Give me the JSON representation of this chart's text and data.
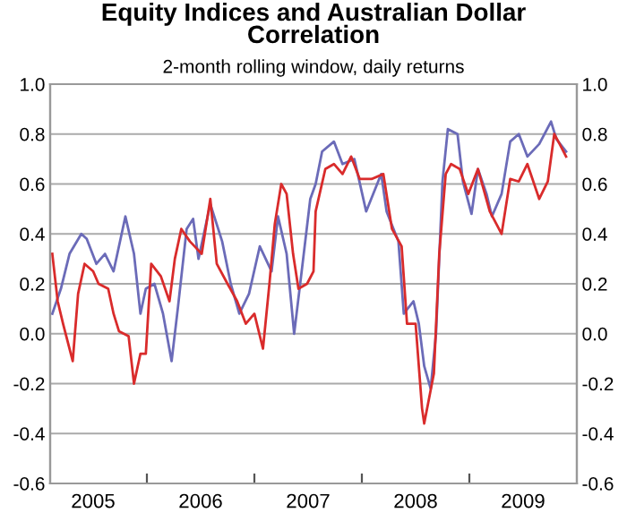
{
  "chart_data": {
    "type": "line",
    "title": "Equity Indices and Australian Dollar\nCorrelation",
    "subtitle": "2-month rolling window, daily returns",
    "xlim": [
      2005.1,
      2010.0
    ],
    "xticks": [
      {
        "value": 2006,
        "label": null
      },
      {
        "value": 2007,
        "label": null
      },
      {
        "value": 2008,
        "label": null
      },
      {
        "value": 2009,
        "label": null
      },
      {
        "value": 2005.5,
        "label": "2005"
      },
      {
        "value": 2006.5,
        "label": "2006"
      },
      {
        "value": 2007.5,
        "label": "2007"
      },
      {
        "value": 2008.5,
        "label": "2008"
      },
      {
        "value": 2009.5,
        "label": "2009"
      }
    ],
    "ylim": [
      -0.6,
      1.0
    ],
    "yticks": [
      {
        "value": -0.6,
        "label": "-0.6"
      },
      {
        "value": -0.4,
        "label": "-0.4"
      },
      {
        "value": -0.2,
        "label": "-0.2"
      },
      {
        "value": 0,
        "label": "0.0"
      },
      {
        "value": 0.2,
        "label": "0.2"
      },
      {
        "value": 0.4,
        "label": "0.4"
      },
      {
        "value": 0.6,
        "label": "0.6"
      },
      {
        "value": 0.8,
        "label": "0.8"
      },
      {
        "value": 1.0,
        "label": "1.0"
      }
    ],
    "y2lim": [
      -0.6,
      1.0
    ],
    "y2ticks": [
      {
        "value": -0.6,
        "label": "-0.6"
      },
      {
        "value": -0.4,
        "label": "-0.4"
      },
      {
        "value": -0.2,
        "label": "-0.2"
      },
      {
        "value": 0,
        "label": "0.0"
      },
      {
        "value": 0.2,
        "label": "0.2"
      },
      {
        "value": 0.4,
        "label": "0.4"
      },
      {
        "value": 0.6,
        "label": "0.6"
      },
      {
        "value": 0.8,
        "label": "0.8"
      },
      {
        "value": 1.0,
        "label": "1.0"
      }
    ],
    "grid": "y",
    "legend": false,
    "series": [
      {
        "color": "#6b6bb8",
        "x": [
          2005.12,
          2005.2,
          2005.28,
          2005.39,
          2005.44,
          2005.53,
          2005.61,
          2005.69,
          2005.8,
          2005.88,
          2005.94,
          2005.99,
          2006.07,
          2006.15,
          2006.23,
          2006.29,
          2006.37,
          2006.43,
          2006.48,
          2006.59,
          2006.7,
          2006.78,
          2006.86,
          2006.95,
          2007.05,
          2007.16,
          2007.22,
          2007.3,
          2007.37,
          2007.44,
          2007.52,
          2007.57,
          2007.63,
          2007.74,
          2007.82,
          2007.93,
          2008.04,
          2008.18,
          2008.23,
          2008.34,
          2008.39,
          2008.48,
          2008.53,
          2008.58,
          2008.64,
          2008.69,
          2008.75,
          2008.8,
          2008.89,
          2008.94,
          2009.02,
          2009.08,
          2009.16,
          2009.21,
          2009.3,
          2009.38,
          2009.46,
          2009.54,
          2009.65,
          2009.76,
          2009.81,
          2009.9
        ],
        "values": [
          0.08,
          0.18,
          0.32,
          0.4,
          0.38,
          0.28,
          0.32,
          0.25,
          0.47,
          0.32,
          0.08,
          0.18,
          0.2,
          0.08,
          -0.11,
          0.11,
          0.42,
          0.46,
          0.3,
          0.52,
          0.37,
          0.2,
          0.08,
          0.16,
          0.35,
          0.25,
          0.47,
          0.32,
          0.0,
          0.25,
          0.54,
          0.6,
          0.73,
          0.77,
          0.68,
          0.7,
          0.49,
          0.64,
          0.49,
          0.37,
          0.08,
          0.13,
          0.04,
          -0.13,
          -0.22,
          0.0,
          0.61,
          0.82,
          0.8,
          0.61,
          0.48,
          0.66,
          0.56,
          0.47,
          0.56,
          0.77,
          0.8,
          0.71,
          0.76,
          0.85,
          0.78,
          0.73
        ]
      },
      {
        "color": "#d92b2b",
        "x": [
          2005.12,
          2005.17,
          2005.22,
          2005.31,
          2005.36,
          2005.42,
          2005.5,
          2005.55,
          2005.64,
          2005.69,
          2005.74,
          2005.83,
          2005.88,
          2005.94,
          2005.99,
          2006.04,
          2006.13,
          2006.21,
          2006.26,
          2006.32,
          2006.4,
          2006.51,
          2006.59,
          2006.65,
          2006.75,
          2006.84,
          2006.92,
          2007.0,
          2007.08,
          2007.14,
          2007.19,
          2007.25,
          2007.3,
          2007.36,
          2007.41,
          2007.49,
          2007.55,
          2007.57,
          2007.66,
          2007.74,
          2007.82,
          2007.9,
          2007.98,
          2008.09,
          2008.2,
          2008.28,
          2008.37,
          2008.42,
          2008.5,
          2008.56,
          2008.58,
          2008.67,
          2008.72,
          2008.78,
          2008.83,
          2008.91,
          2008.99,
          2009.08,
          2009.19,
          2009.3,
          2009.38,
          2009.46,
          2009.54,
          2009.65,
          2009.73,
          2009.79,
          2009.84,
          2009.9
        ],
        "values": [
          0.32,
          0.13,
          0.04,
          -0.11,
          0.16,
          0.28,
          0.25,
          0.2,
          0.18,
          0.08,
          0.01,
          -0.01,
          -0.2,
          -0.08,
          -0.08,
          0.28,
          0.23,
          0.13,
          0.3,
          0.42,
          0.37,
          0.32,
          0.54,
          0.28,
          0.2,
          0.13,
          0.04,
          0.08,
          -0.06,
          0.2,
          0.44,
          0.6,
          0.56,
          0.32,
          0.18,
          0.2,
          0.25,
          0.49,
          0.66,
          0.68,
          0.64,
          0.71,
          0.62,
          0.62,
          0.64,
          0.42,
          0.35,
          0.04,
          0.04,
          -0.3,
          -0.36,
          -0.16,
          0.32,
          0.64,
          0.68,
          0.66,
          0.56,
          0.66,
          0.49,
          0.4,
          0.62,
          0.61,
          0.68,
          0.54,
          0.61,
          0.8,
          0.76,
          0.71
        ]
      }
    ]
  }
}
